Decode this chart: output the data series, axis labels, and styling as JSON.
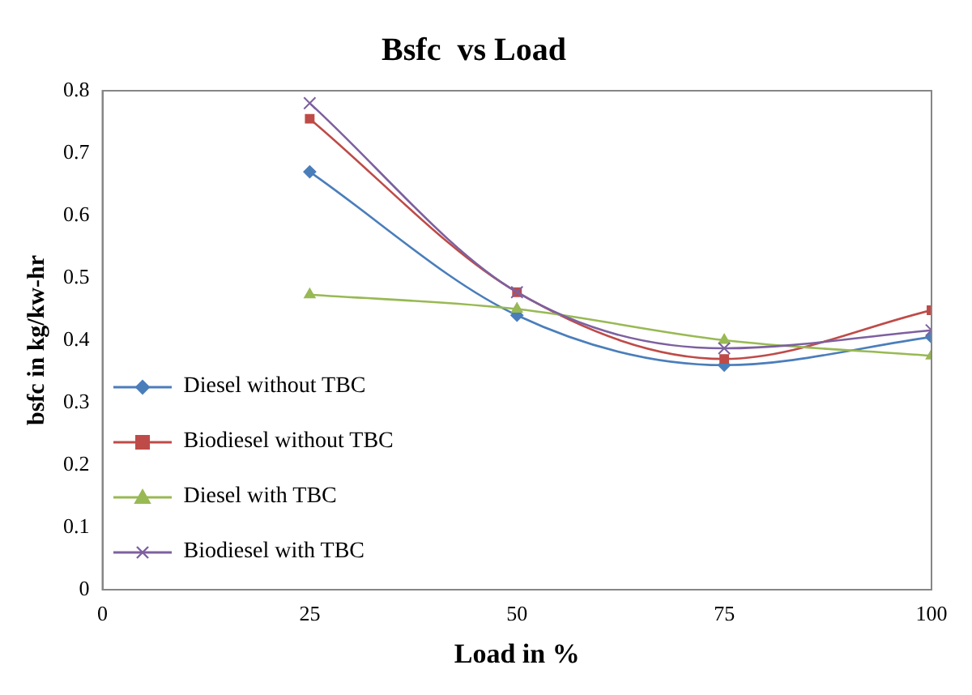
{
  "chart_data": {
    "type": "line",
    "title": "Bsfc  vs Load",
    "xlabel": "Load in %",
    "ylabel": "bsfc in kg/kw-hr",
    "x": [
      25,
      50,
      75,
      100
    ],
    "xlim": [
      0,
      100
    ],
    "xticks": [
      0,
      25,
      50,
      75,
      100
    ],
    "ylim": [
      0,
      0.8
    ],
    "yticks": [
      0,
      0.1,
      0.2,
      0.3,
      0.4,
      0.5,
      0.6,
      0.7,
      0.8
    ],
    "grid": false,
    "legend": "bottom left",
    "series": [
      {
        "name": "Diesel without TBC",
        "color": "#4a7ebb",
        "marker": "diamond",
        "values": [
          0.67,
          0.44,
          0.36,
          0.405
        ]
      },
      {
        "name": "Biodiesel without TBC",
        "color": "#be4b48",
        "marker": "square",
        "values": [
          0.755,
          0.477,
          0.37,
          0.448
        ]
      },
      {
        "name": "Diesel with TBC",
        "color": "#98b954",
        "marker": "triangle",
        "values": [
          0.473,
          0.45,
          0.4,
          0.375
        ]
      },
      {
        "name": "Biodiesel with TBC",
        "color": "#7d60a0",
        "marker": "cross",
        "values": [
          0.78,
          0.477,
          0.387,
          0.416
        ]
      }
    ]
  }
}
